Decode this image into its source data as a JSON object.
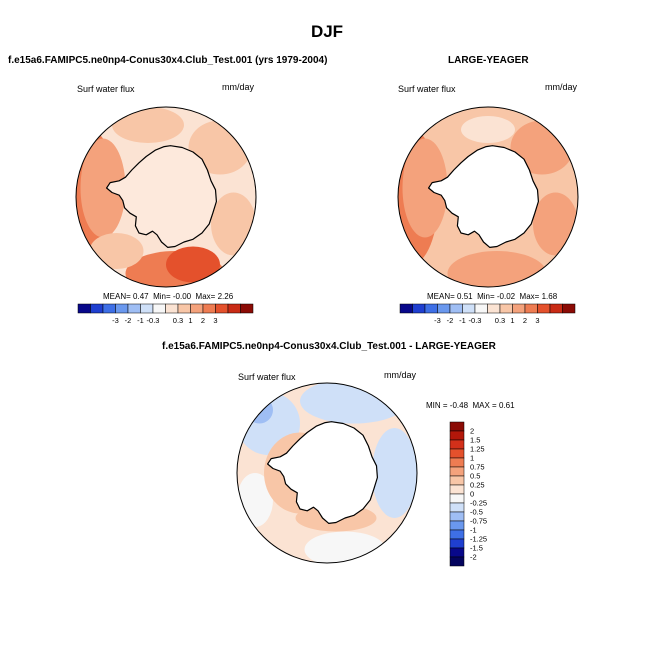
{
  "page_title": "DJF",
  "panels": [
    {
      "title": "f.e15a6.FAMIPC5.ne0np4-Conus30x4.Club_Test.001 (yrs 1979-2004)",
      "variable": "Surf water flux",
      "units": "mm/day",
      "stats": {
        "mean_label": "MEAN=",
        "mean": "0.47",
        "min_label": "Min=",
        "min": "-0.00",
        "max_label": "Max=",
        "max": "2.26"
      },
      "colorbar": {
        "labels": [
          "-3",
          "-2",
          "-1",
          "-0.3",
          "0.3",
          "1",
          "2",
          "3"
        ],
        "colors": [
          "#08088a",
          "#1f3fd0",
          "#3e6fe6",
          "#6a98ee",
          "#9fbef4",
          "#cfe0f8",
          "#f7f7f7",
          "#fbe3d3",
          "#f8c6a7",
          "#f4a27c",
          "#ee7c52",
          "#e4512c",
          "#c92b15",
          "#8b0b05"
        ]
      }
    },
    {
      "title": "LARGE-YEAGER",
      "variable": "Surf water flux",
      "units": "mm/day",
      "stats": {
        "mean_label": "MEAN=",
        "mean": "0.51",
        "min_label": "Min=",
        "min": "-0.02",
        "max_label": "Max=",
        "max": "1.68"
      },
      "colorbar": {
        "labels": [
          "-3",
          "-2",
          "-1",
          "-0.3",
          "0.3",
          "1",
          "2",
          "3"
        ],
        "colors": [
          "#08088a",
          "#1f3fd0",
          "#3e6fe6",
          "#6a98ee",
          "#9fbef4",
          "#cfe0f8",
          "#f7f7f7",
          "#fbe3d3",
          "#f8c6a7",
          "#f4a27c",
          "#ee7c52",
          "#e4512c",
          "#c92b15",
          "#8b0b05"
        ]
      }
    },
    {
      "title": "f.e15a6.FAMIPC5.ne0np4-Conus30x4.Club_Test.001 - LARGE-YEAGER",
      "variable": "Surf water flux",
      "units": "mm/day",
      "stats": {
        "min_label": "MIN =",
        "min": "-0.48",
        "max_label": "MAX =",
        "max": "0.61"
      },
      "colorbar": {
        "labels": [
          "2",
          "1.5",
          "1.25",
          "1",
          "0.75",
          "0.5",
          "0.25",
          "0",
          "-0.25",
          "-0.5",
          "-0.75",
          "-1",
          "-1.25",
          "-1.5",
          "-2"
        ],
        "colors": [
          "#8b0b05",
          "#b3170a",
          "#d3301a",
          "#e4512c",
          "#ee7c52",
          "#f4a27c",
          "#f8c6a7",
          "#fbe3d3",
          "#f7f7f7",
          "#cfe0f8",
          "#9fbef4",
          "#6a98ee",
          "#3e6fe6",
          "#1f3fd0",
          "#08088a",
          "#04045e"
        ]
      }
    }
  ]
}
